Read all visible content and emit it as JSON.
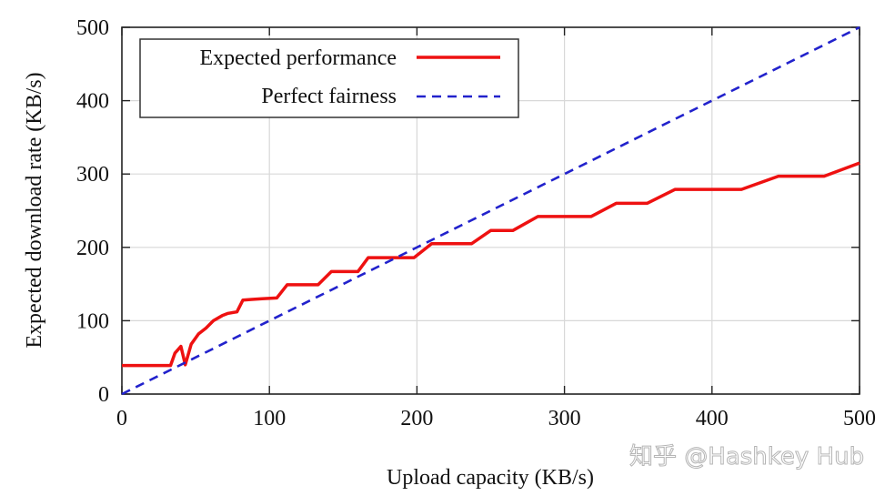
{
  "chart_data": {
    "type": "line",
    "title": "",
    "xlabel": "Upload capacity (KB/s)",
    "ylabel": "Expected download rate (KB/s)",
    "xlim": [
      0,
      500
    ],
    "ylim": [
      0,
      500
    ],
    "xticks": [
      0,
      100,
      200,
      300,
      400,
      500
    ],
    "yticks": [
      0,
      100,
      200,
      300,
      400,
      500
    ],
    "xtick_labels": [
      "0",
      "100",
      "200",
      "300",
      "400",
      "500"
    ],
    "ytick_labels": [
      "0",
      "100",
      "200",
      "300",
      "400",
      "500"
    ],
    "grid": true,
    "legend_position": "top-left",
    "series": [
      {
        "name": "Expected performance",
        "color": "#ee1111",
        "style": "solid",
        "x": [
          0,
          33,
          36,
          40,
          43,
          47,
          52,
          57,
          62,
          68,
          72,
          78,
          82,
          88,
          95,
          105,
          112,
          118,
          133,
          142,
          160,
          167,
          190,
          198,
          210,
          237,
          250,
          265,
          282,
          318,
          335,
          356,
          375,
          420,
          445,
          476,
          500
        ],
        "y": [
          39,
          39,
          56,
          65,
          40,
          68,
          82,
          90,
          100,
          107,
          110,
          112,
          128,
          129,
          130,
          131,
          149,
          149,
          149,
          167,
          167,
          186,
          186,
          186,
          205,
          205,
          223,
          223,
          242,
          242,
          260,
          260,
          279,
          279,
          297,
          297,
          315
        ]
      },
      {
        "name": "Perfect fairness",
        "color": "#2222cc",
        "style": "dashed",
        "x": [
          0,
          500
        ],
        "y": [
          0,
          500
        ]
      }
    ]
  },
  "watermark": "知乎 @Hashkey Hub"
}
